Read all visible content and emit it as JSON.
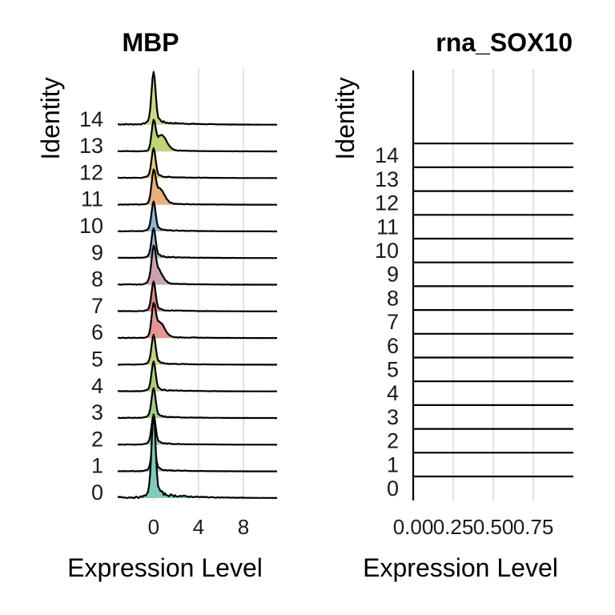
{
  "chart_data": [
    {
      "type": "ridgeline",
      "title": "MBP",
      "xlabel": "Expression Level",
      "ylabel": "Identity",
      "categories": [
        "0",
        "1",
        "2",
        "3",
        "4",
        "5",
        "6",
        "7",
        "8",
        "9",
        "10",
        "11",
        "12",
        "13",
        "14"
      ],
      "x_ticks": [
        0,
        4,
        8
      ],
      "x_tick_labels": [
        "0",
        "4",
        "8"
      ],
      "xlim": [
        -3.2,
        11
      ],
      "grid": "vertical",
      "legend": "none",
      "peak_location": [
        0,
        0,
        0,
        0,
        0,
        0,
        0.5,
        0,
        0.3,
        0,
        0,
        0.5,
        0,
        0.7,
        0
      ],
      "colors": [
        "#79c7b9",
        "#83c6a4",
        "#8fc890",
        "#9ccb82",
        "#a9c97c",
        "#c4cc74",
        "#e48f8b",
        "#e27e7e",
        "#c6a0ac",
        "#9ab3c9",
        "#8ab1cf",
        "#e8ad75",
        "#efc274",
        "#b9d36a",
        "#c6da7a"
      ]
    },
    {
      "type": "ridgeline",
      "title": "rna_SOX10",
      "xlabel": "Expression Level",
      "ylabel": "Identity",
      "categories": [
        "0",
        "1",
        "2",
        "3",
        "4",
        "5",
        "6",
        "7",
        "8",
        "9",
        "10",
        "11",
        "12",
        "13",
        "14"
      ],
      "x_ticks": [
        0,
        0.25,
        0.5,
        0.75
      ],
      "x_tick_labels": [
        "0.00",
        "0.25",
        "0.50",
        "0.75"
      ],
      "xlim": [
        0,
        1
      ],
      "grid": "vertical",
      "legend": "none",
      "note_values": "all zero"
    }
  ]
}
